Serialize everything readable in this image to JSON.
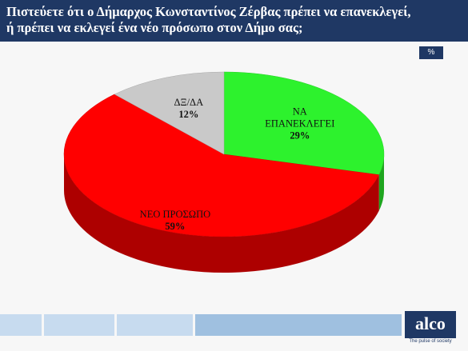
{
  "header": {
    "title_lines": [
      "Πιστεύετε ότι ο Δήμαρχος Κωνσταντίνος Ζέρβας πρέπει να επανεκλεγεί,",
      "ή πρέπει να εκλεγεί ένα νέο πρόσωπο  στον Δήμο σας;"
    ],
    "badge": "%"
  },
  "chart_data": {
    "type": "pie",
    "categories": [
      "ΝΑ ΕΠΑΝΕΚΛΕΓΕΙ",
      "ΝΕΟ ΠΡΟΣΩΠΟ",
      "ΔΞ/ΔΑ"
    ],
    "values": [
      29,
      59,
      12
    ],
    "value_labels": [
      "29%",
      "59%",
      "12%"
    ],
    "colors": [
      "#2df22d",
      "#ff0000",
      "#c9c9c9"
    ]
  },
  "footer": {
    "logo": "alco",
    "tagline": "The pulse of society"
  }
}
